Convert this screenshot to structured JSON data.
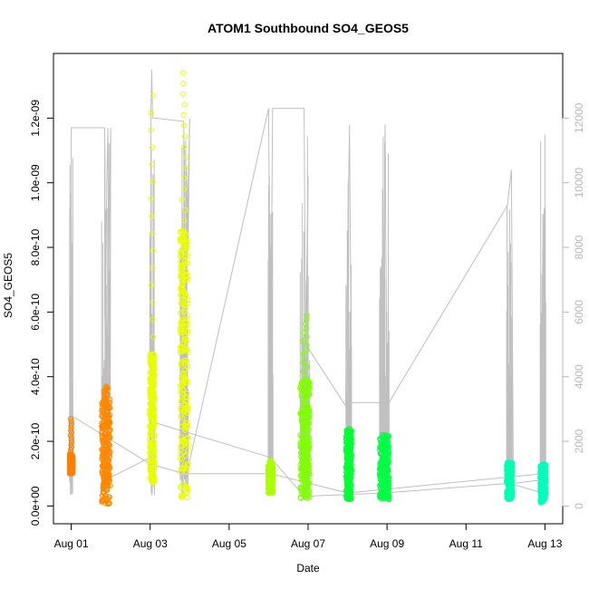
{
  "chart_data": {
    "type": "scatter",
    "title": "ATOM1 Southbound SO4_GEOS5",
    "xlabel": "Date",
    "ylabel": "SO4_GEOS5",
    "x_tick_labels": [
      "Aug 01",
      "Aug 03",
      "Aug 05",
      "Aug 07",
      "Aug 09",
      "Aug 11",
      "Aug 13"
    ],
    "x_tick_days": [
      1,
      3,
      5,
      7,
      9,
      11,
      13
    ],
    "xlim_days": [
      0.55,
      13.45
    ],
    "y_tick_labels": [
      "0.0e+00",
      "2.0e-10",
      "4.0e-10",
      "6.0e-10",
      "8.0e-10",
      "1.0e-09",
      "1.2e-09"
    ],
    "y_tick_values": [
      0,
      2e-10,
      4e-10,
      6e-10,
      8e-10,
      1e-09,
      1.2e-09
    ],
    "ylim": [
      -5.5e-11,
      1.4e-09
    ],
    "y2_label": "",
    "y2_tick_labels": [
      "0",
      "2000",
      "4000",
      "6000",
      "8000",
      "10000",
      "12000"
    ],
    "y2_tick_values": [
      0,
      2000,
      4000,
      6000,
      8000,
      10000,
      12000
    ],
    "y2lim": [
      -550,
      14000
    ],
    "grid": false,
    "legend": "none",
    "colors": {
      "axis": "#000000",
      "frame": "#000000",
      "altitude_line": "#bfbfbf",
      "right_axis": "#b8b8b8"
    },
    "clusters": [
      {
        "day": 1.0,
        "width": 0.08,
        "dense_min": 1e-10,
        "dense_max": 1.6e-10,
        "sparse_max": 2.7e-10,
        "color": "#ff8000"
      },
      {
        "day": 1.88,
        "width": 0.22,
        "dense_min": 5e-12,
        "dense_max": 3.3e-10,
        "sparse_max": 3.7e-10,
        "color": "#ff8800"
      },
      {
        "day": 3.05,
        "width": 0.12,
        "dense_min": 7e-11,
        "dense_max": 4.7e-10,
        "sparse_max": 1.27e-09,
        "color": "#e6ff00"
      },
      {
        "day": 3.86,
        "width": 0.2,
        "dense_min": 2.5e-11,
        "dense_max": 8.5e-10,
        "sparse_max": 1.34e-09,
        "color": "#ecff00"
      },
      {
        "day": 6.05,
        "width": 0.12,
        "dense_min": 4e-11,
        "dense_max": 1.3e-10,
        "sparse_max": 1.4e-10,
        "color": "#aaff00"
      },
      {
        "day": 6.92,
        "width": 0.24,
        "dense_min": 2e-11,
        "dense_max": 3.9e-10,
        "sparse_max": 5.9e-10,
        "color": "#80ff00"
      },
      {
        "day": 8.03,
        "width": 0.14,
        "dense_min": 2e-11,
        "dense_max": 2.4e-10,
        "sparse_max": 2.4e-10,
        "color": "#00ff33"
      },
      {
        "day": 8.93,
        "width": 0.24,
        "dense_min": 2e-11,
        "dense_max": 2.2e-10,
        "sparse_max": 2.2e-10,
        "color": "#00ff44"
      },
      {
        "day": 12.1,
        "width": 0.14,
        "dense_min": 2e-11,
        "dense_max": 1.35e-10,
        "sparse_max": 1.35e-10,
        "color": "#00ffb0"
      },
      {
        "day": 12.95,
        "width": 0.14,
        "dense_min": 1e-11,
        "dense_max": 1.3e-10,
        "sparse_max": 1.3e-10,
        "color": "#00ffb8"
      }
    ],
    "altitude_trace": [
      [
        1.0,
        7100
      ],
      [
        1.0,
        11700
      ],
      [
        1.85,
        11700
      ],
      [
        1.85,
        5800
      ],
      [
        1.88,
        7000
      ],
      [
        1.9,
        10000
      ],
      [
        1.93,
        11700
      ],
      [
        1.96,
        2800
      ],
      [
        1.98,
        1500
      ],
      [
        2.0,
        11700
      ],
      [
        1.86,
        800
      ],
      [
        3.0,
        1500
      ],
      [
        3.02,
        12300
      ],
      [
        3.04,
        13500
      ],
      [
        3.06,
        12000
      ],
      [
        3.1,
        12000
      ],
      [
        3.85,
        11900
      ],
      [
        3.88,
        3800
      ],
      [
        3.92,
        10500
      ],
      [
        3.96,
        8000
      ],
      [
        4.0,
        12000
      ],
      [
        3.8,
        300
      ],
      [
        6.0,
        12300
      ],
      [
        6.05,
        3600
      ],
      [
        6.1,
        12300
      ],
      [
        6.9,
        12300
      ],
      [
        6.95,
        1800
      ],
      [
        7.0,
        10200
      ],
      [
        6.94,
        5000
      ],
      [
        7.95,
        3100
      ],
      [
        8.05,
        11800
      ],
      [
        8.1,
        3200
      ],
      [
        8.9,
        3200
      ],
      [
        8.95,
        11800
      ],
      [
        9.0,
        3100
      ],
      [
        12.05,
        9300
      ],
      [
        12.15,
        10400
      ],
      [
        12.2,
        700
      ],
      [
        12.9,
        800
      ],
      [
        12.95,
        9000
      ],
      [
        13.0,
        800
      ]
    ],
    "altitude_connectors": [
      [
        [
          1.0,
          2800
        ],
        [
          3.0,
          1300
        ],
        [
          3.85,
          1000
        ],
        [
          6.05,
          1000
        ],
        [
          8.0,
          400
        ],
        [
          12.95,
          1000
        ]
      ],
      [
        [
          3.05,
          2600
        ],
        [
          6.05,
          1500
        ],
        [
          6.9,
          300
        ],
        [
          8.9,
          400
        ],
        [
          12.1,
          700
        ],
        [
          12.95,
          400
        ]
      ]
    ]
  }
}
